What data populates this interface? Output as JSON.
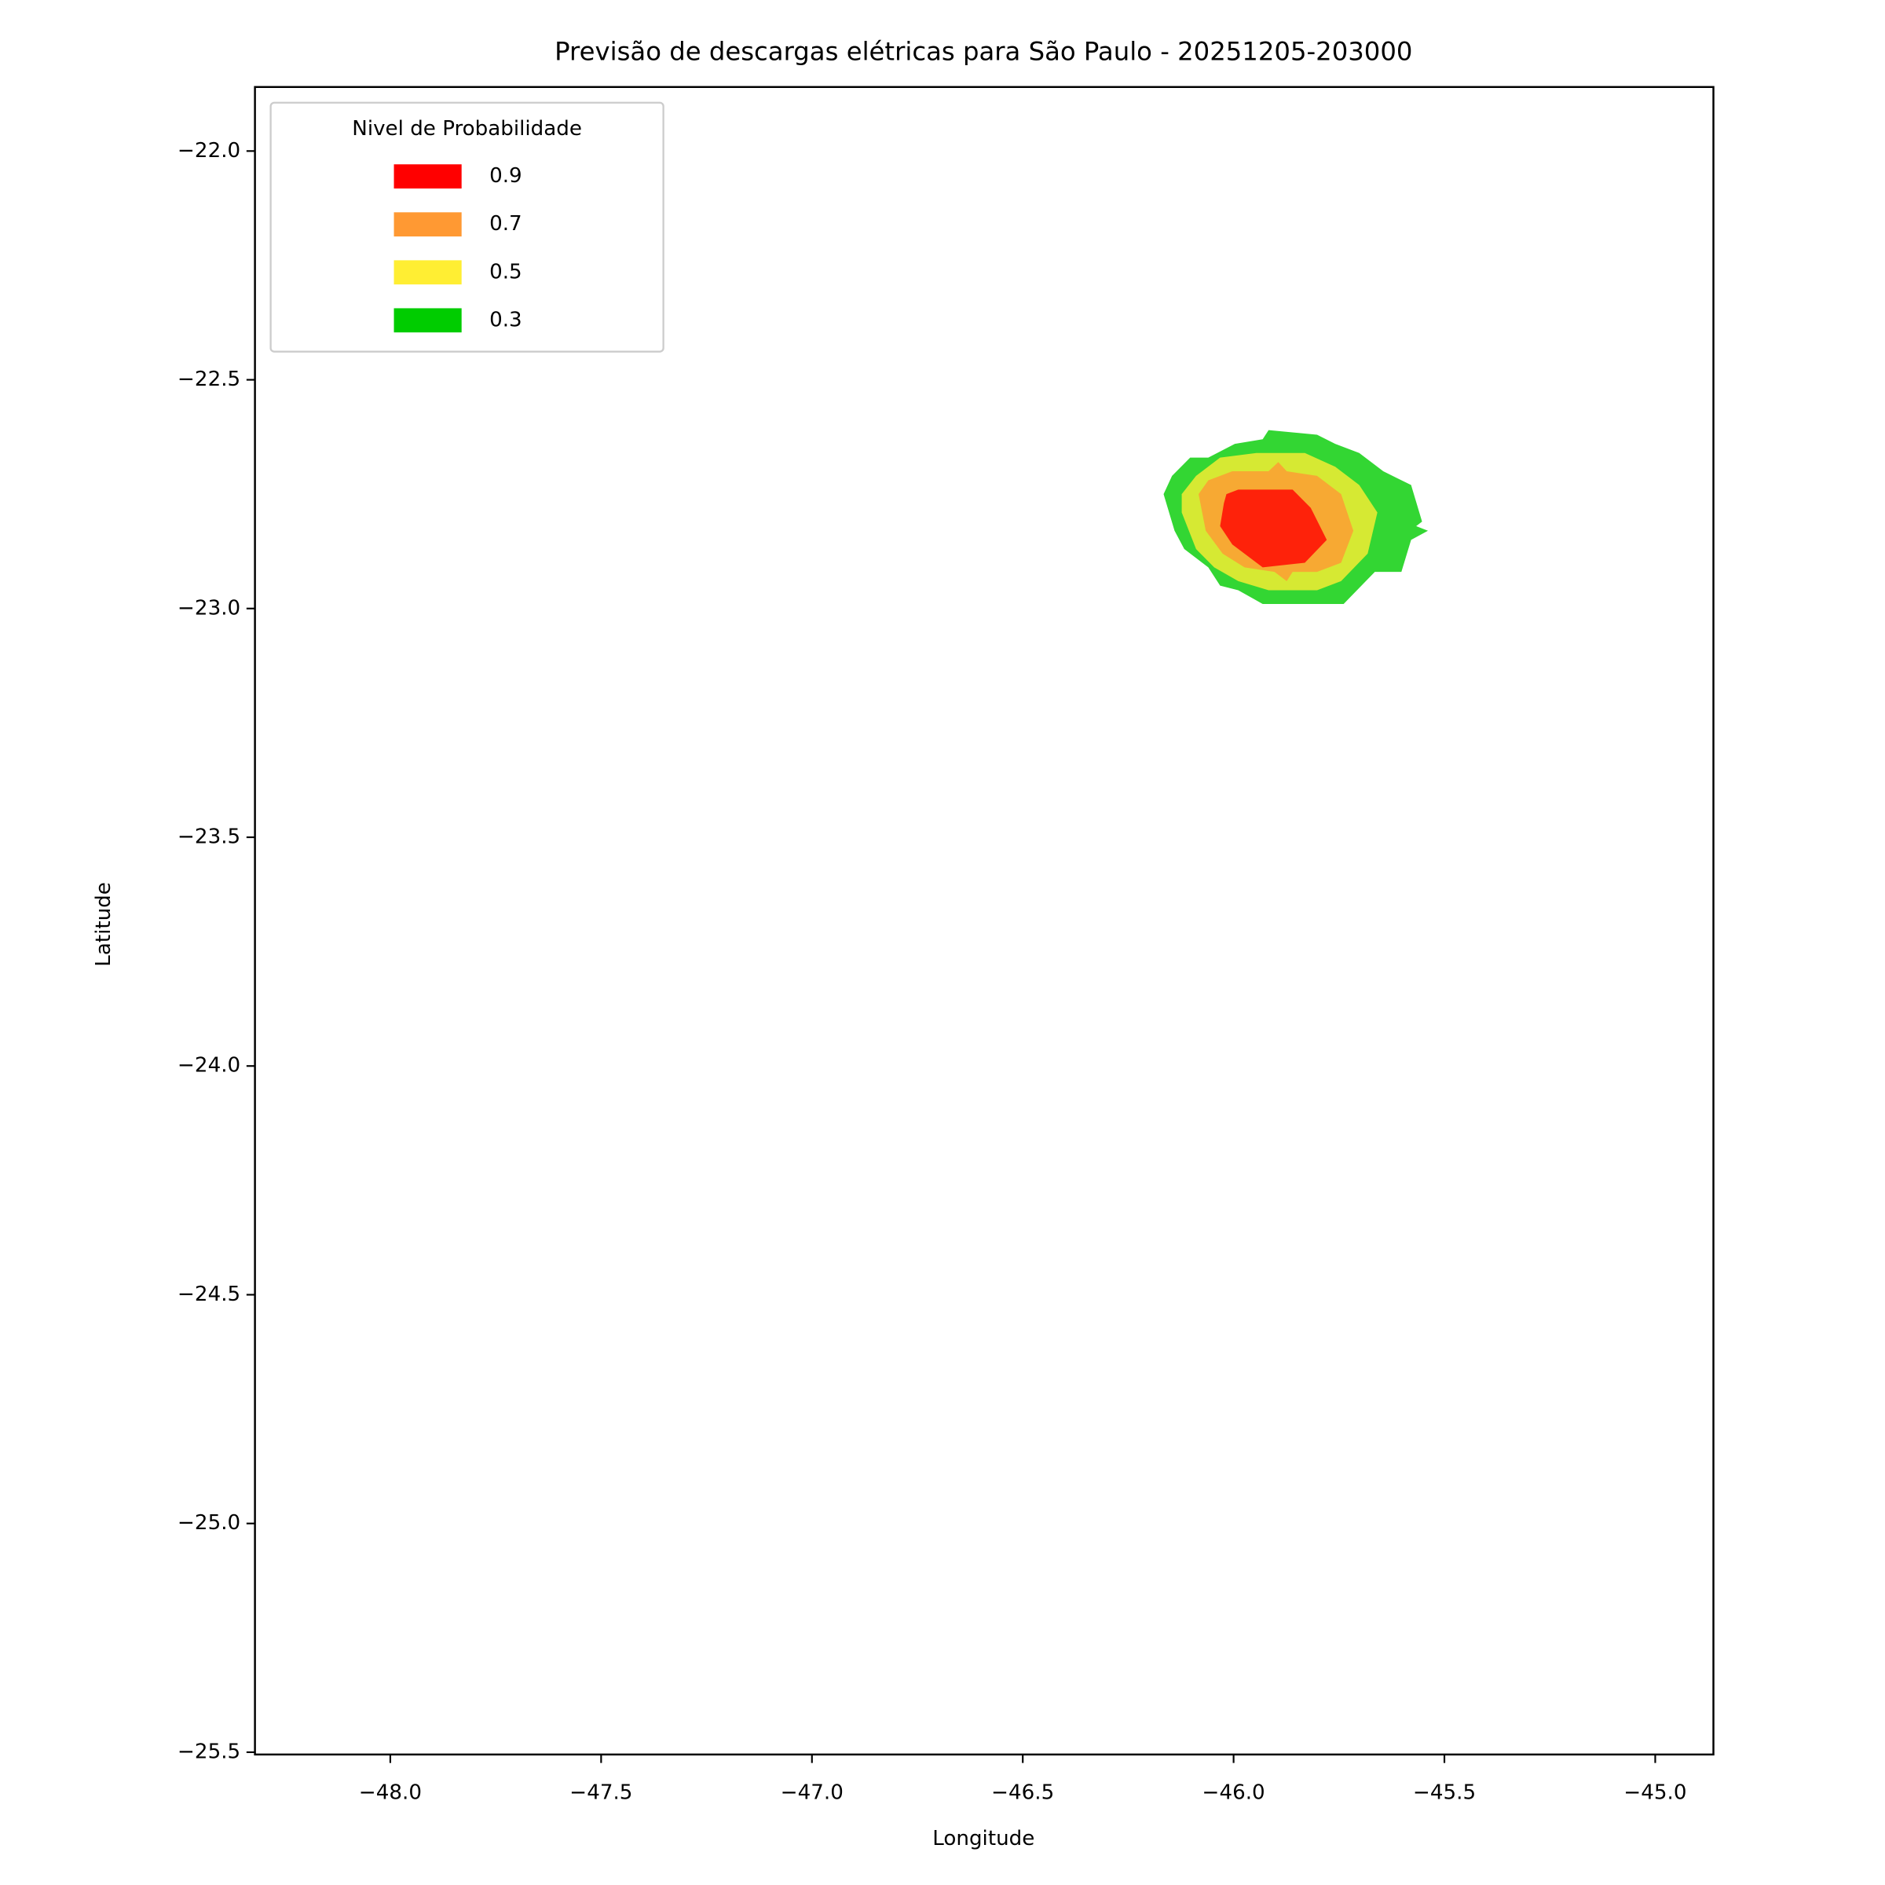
{
  "chart_data": {
    "type": "contour",
    "title": "Previsão de descargas elétricas para São Paulo - 20251205-203000",
    "xlabel": "Longitude",
    "ylabel": "Latitude",
    "xlim": [
      -48.321,
      -44.862
    ],
    "ylim": [
      -25.505,
      -21.86
    ],
    "xticks": [
      {
        "value": -48.0,
        "label": "−48.0"
      },
      {
        "value": -47.5,
        "label": "−47.5"
      },
      {
        "value": -47.0,
        "label": "−47.0"
      },
      {
        "value": -46.5,
        "label": "−46.5"
      },
      {
        "value": -46.0,
        "label": "−46.0"
      },
      {
        "value": -45.5,
        "label": "−45.5"
      },
      {
        "value": -45.0,
        "label": "−45.0"
      }
    ],
    "yticks": [
      {
        "value": -22.0,
        "label": "−22.0"
      },
      {
        "value": -22.5,
        "label": "−22.5"
      },
      {
        "value": -23.0,
        "label": "−23.0"
      },
      {
        "value": -23.5,
        "label": "−23.5"
      },
      {
        "value": -24.0,
        "label": "−24.0"
      },
      {
        "value": -24.5,
        "label": "−24.5"
      },
      {
        "value": -25.0,
        "label": "−25.0"
      },
      {
        "value": -25.5,
        "label": "−25.5"
      }
    ],
    "legend": {
      "title": "Nivel de Probabilidade",
      "loc": "upper left"
    },
    "opacity": 0.8,
    "series": [
      {
        "name": "0.9",
        "color": "#ff0000",
        "x": [
          -46.017,
          -45.989,
          -45.86,
          -45.817,
          -45.779,
          -45.831,
          -45.931,
          -46.003,
          -46.032,
          -46.023
        ],
        "y": [
          -22.75,
          -22.74,
          -22.74,
          -22.78,
          -22.85,
          -22.9,
          -22.91,
          -22.86,
          -22.82,
          -22.77
        ]
      },
      {
        "name": "0.7",
        "color": "#ff9933",
        "x": [
          -46.083,
          -46.06,
          -46.003,
          -45.917,
          -45.894,
          -45.874,
          -45.802,
          -45.745,
          -45.716,
          -45.745,
          -45.802,
          -45.86,
          -45.874,
          -45.903,
          -45.974,
          -46.026,
          -46.066
        ],
        "y": [
          -22.75,
          -22.72,
          -22.7,
          -22.7,
          -22.68,
          -22.7,
          -22.71,
          -22.75,
          -22.83,
          -22.9,
          -22.92,
          -22.92,
          -22.94,
          -22.92,
          -22.91,
          -22.88,
          -22.83
        ]
      },
      {
        "name": "0.5",
        "color": "#ffee33",
        "x": [
          -46.123,
          -46.089,
          -46.032,
          -45.946,
          -45.831,
          -45.759,
          -45.702,
          -45.659,
          -45.682,
          -45.745,
          -45.802,
          -45.917,
          -45.989,
          -46.046,
          -46.089,
          -46.123
        ],
        "y": [
          -22.75,
          -22.71,
          -22.67,
          -22.66,
          -22.66,
          -22.69,
          -22.73,
          -22.79,
          -22.88,
          -22.94,
          -22.96,
          -22.96,
          -22.94,
          -22.91,
          -22.87,
          -22.79
        ]
      },
      {
        "name": "0.3",
        "color": "#00cc00",
        "x": [
          -46.166,
          -46.146,
          -46.103,
          -46.06,
          -45.997,
          -45.931,
          -45.917,
          -45.802,
          -45.759,
          -45.702,
          -45.645,
          -45.579,
          -45.553,
          -45.567,
          -45.539,
          -45.579,
          -45.602,
          -45.665,
          -45.739,
          -45.931,
          -45.989,
          -46.032,
          -46.06,
          -46.117,
          -46.14
        ],
        "y": [
          -22.75,
          -22.71,
          -22.67,
          -22.67,
          -22.64,
          -22.63,
          -22.61,
          -22.62,
          -22.64,
          -22.66,
          -22.7,
          -22.73,
          -22.81,
          -22.82,
          -22.83,
          -22.85,
          -22.92,
          -22.92,
          -22.99,
          -22.99,
          -22.96,
          -22.95,
          -22.91,
          -22.87,
          -22.83
        ]
      }
    ]
  }
}
